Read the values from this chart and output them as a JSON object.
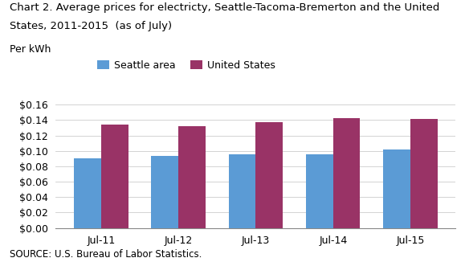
{
  "title_line1": "Chart 2. Average prices for electricty, Seattle-Tacoma-Bremerton and the United",
  "title_line2": "States, 2011-2015  (as of July)",
  "ylabel": "Per kWh",
  "source": "SOURCE: U.S. Bureau of Labor Statistics.",
  "categories": [
    "Jul-11",
    "Jul-12",
    "Jul-13",
    "Jul-14",
    "Jul-15"
  ],
  "seattle_values": [
    0.09,
    0.093,
    0.096,
    0.096,
    0.102
  ],
  "us_values": [
    0.134,
    0.132,
    0.137,
    0.143,
    0.141
  ],
  "seattle_color": "#5B9BD5",
  "us_color": "#993366",
  "ylim": [
    0,
    0.17
  ],
  "yticks": [
    0.0,
    0.02,
    0.04,
    0.06,
    0.08,
    0.1,
    0.12,
    0.14,
    0.16
  ],
  "legend_labels": [
    "Seattle area",
    "United States"
  ],
  "bar_width": 0.35,
  "background_color": "#ffffff",
  "title_fontsize": 9.5,
  "axis_fontsize": 9,
  "tick_fontsize": 9,
  "legend_fontsize": 9
}
